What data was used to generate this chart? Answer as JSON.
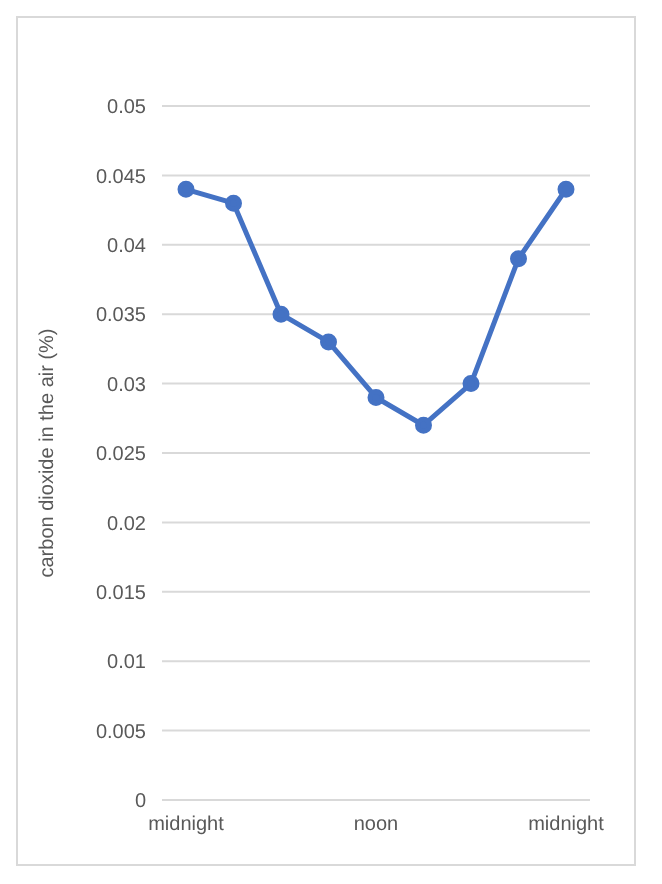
{
  "chart_data": {
    "type": "line",
    "ylabel": "carbon dioxide in the air (%)",
    "categories": [
      "midnight",
      null,
      null,
      null,
      "noon",
      null,
      null,
      null,
      "midnight"
    ],
    "series": [
      {
        "color": "#4472c4",
        "values": [
          0.044,
          0.043,
          0.035,
          0.033,
          0.029,
          0.027,
          0.03,
          0.039,
          0.044
        ]
      }
    ],
    "ylim": [
      0,
      0.05
    ],
    "yticks": [
      0,
      0.005,
      0.01,
      0.015,
      0.02,
      0.025,
      0.03,
      0.035,
      0.04,
      0.045,
      0.05
    ],
    "grid": "y",
    "marker": "circle",
    "line_style": "solid",
    "legend": false
  }
}
